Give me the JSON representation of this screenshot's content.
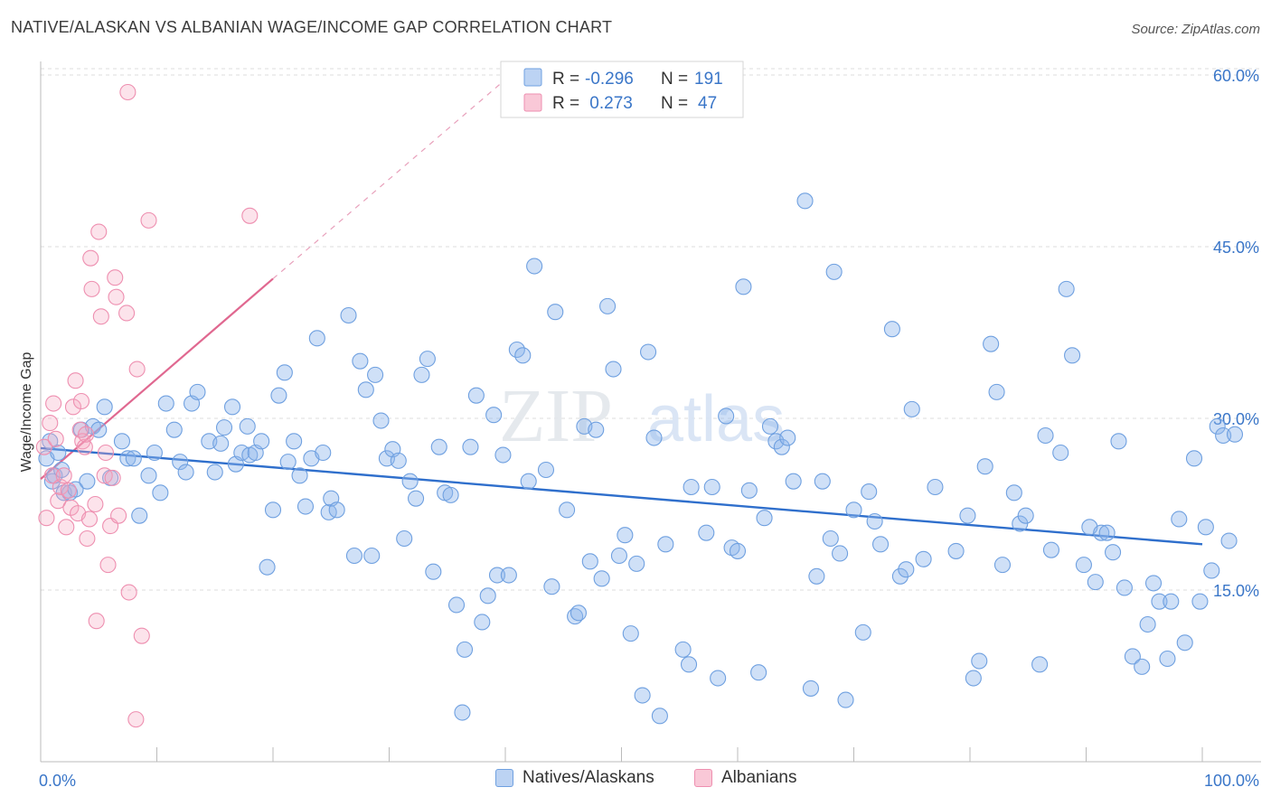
{
  "header": {
    "title": "NATIVE/ALASKAN VS ALBANIAN WAGE/INCOME GAP CORRELATION CHART",
    "source": "Source: ZipAtlas.com"
  },
  "watermark": {
    "zip": "ZIP",
    "atlas": "atlas"
  },
  "stats_legend": {
    "rows": [
      {
        "r_label": "R =",
        "r_value": "-0.296",
        "n_label": "N =",
        "n_value": "191",
        "color": "#6fa0e0"
      },
      {
        "r_label": "R =",
        "r_value": " 0.273",
        "n_label": "N =",
        "n_value": "47",
        "color": "#ee8fb0"
      }
    ]
  },
  "chart_data": {
    "type": "scatter",
    "title": "NATIVE/ALASKAN VS ALBANIAN WAGE/INCOME GAP CORRELATION CHART",
    "xlabel": "",
    "ylabel": "Wage/Income Gap",
    "xlim": [
      0,
      100
    ],
    "ylim": [
      0,
      64
    ],
    "x_ticks": [
      0,
      10,
      20,
      30,
      40,
      50,
      60,
      70,
      80,
      90,
      100
    ],
    "x_tick_labels_shown": {
      "min": "0.0%",
      "max": "100.0%"
    },
    "y_ticks": [
      15,
      30,
      45,
      60
    ],
    "y_tick_labels": [
      "15.0%",
      "30.0%",
      "45.0%",
      "60.0%"
    ],
    "grid": true,
    "legend_position": "bottom-center",
    "series": [
      {
        "name": "Natives/Alaskans",
        "color": "#6fa0e0",
        "r": -0.296,
        "n": 191,
        "trend": {
          "x": [
            0,
            100
          ],
          "y": [
            27.4,
            19.0
          ]
        },
        "points": [
          [
            0.5,
            26.5
          ],
          [
            0.8,
            28.0
          ],
          [
            1.0,
            24.5
          ],
          [
            1.2,
            25.0
          ],
          [
            1.5,
            27.0
          ],
          [
            1.8,
            25.5
          ],
          [
            2.0,
            23.5
          ],
          [
            2.5,
            23.5
          ],
          [
            3.0,
            23.8
          ],
          [
            3.5,
            29.0
          ],
          [
            4.0,
            24.5
          ],
          [
            4.5,
            29.3
          ],
          [
            5.0,
            29.0
          ],
          [
            5.5,
            31.0
          ],
          [
            6.0,
            24.8
          ],
          [
            7.0,
            28.0
          ],
          [
            7.5,
            26.5
          ],
          [
            8.0,
            26.5
          ],
          [
            8.5,
            21.5
          ],
          [
            9.3,
            25.0
          ],
          [
            9.8,
            27.0
          ],
          [
            10.3,
            23.5
          ],
          [
            10.8,
            31.3
          ],
          [
            11.5,
            29.0
          ],
          [
            12.0,
            26.2
          ],
          [
            12.5,
            25.3
          ],
          [
            13.0,
            31.3
          ],
          [
            13.5,
            32.3
          ],
          [
            14.5,
            28.0
          ],
          [
            15.0,
            25.3
          ],
          [
            15.5,
            27.8
          ],
          [
            15.8,
            29.2
          ],
          [
            16.5,
            31.0
          ],
          [
            16.8,
            26.0
          ],
          [
            17.3,
            27.0
          ],
          [
            17.8,
            29.3
          ],
          [
            18.0,
            26.8
          ],
          [
            18.5,
            27.0
          ],
          [
            19.0,
            28.0
          ],
          [
            19.5,
            17.0
          ],
          [
            20.0,
            22.0
          ],
          [
            20.5,
            32.0
          ],
          [
            21.0,
            34.0
          ],
          [
            21.3,
            26.2
          ],
          [
            21.8,
            28.0
          ],
          [
            22.3,
            25.0
          ],
          [
            22.8,
            22.3
          ],
          [
            23.3,
            26.5
          ],
          [
            23.8,
            37.0
          ],
          [
            24.3,
            27.0
          ],
          [
            24.8,
            21.8
          ],
          [
            25.0,
            23.0
          ],
          [
            25.5,
            22.0
          ],
          [
            26.5,
            39.0
          ],
          [
            27.0,
            18.0
          ],
          [
            27.5,
            35.0
          ],
          [
            28.0,
            32.5
          ],
          [
            28.5,
            18.0
          ],
          [
            28.8,
            33.8
          ],
          [
            29.3,
            29.8
          ],
          [
            29.8,
            26.5
          ],
          [
            30.3,
            27.3
          ],
          [
            30.8,
            26.3
          ],
          [
            31.3,
            19.5
          ],
          [
            31.8,
            24.5
          ],
          [
            32.3,
            23.0
          ],
          [
            32.8,
            33.8
          ],
          [
            33.3,
            35.2
          ],
          [
            33.8,
            16.6
          ],
          [
            34.3,
            27.5
          ],
          [
            34.8,
            23.5
          ],
          [
            35.3,
            23.3
          ],
          [
            35.8,
            13.7
          ],
          [
            36.3,
            4.3
          ],
          [
            36.5,
            9.8
          ],
          [
            37.0,
            27.5
          ],
          [
            37.5,
            32.0
          ],
          [
            38.0,
            12.2
          ],
          [
            38.5,
            14.5
          ],
          [
            39.0,
            30.3
          ],
          [
            39.3,
            16.3
          ],
          [
            39.8,
            26.8
          ],
          [
            40.3,
            16.3
          ],
          [
            41.0,
            36.0
          ],
          [
            41.5,
            35.5
          ],
          [
            42.0,
            24.5
          ],
          [
            42.5,
            43.3
          ],
          [
            43.5,
            25.5
          ],
          [
            44.0,
            15.3
          ],
          [
            44.3,
            39.3
          ],
          [
            45.3,
            22.0
          ],
          [
            46.0,
            12.7
          ],
          [
            46.3,
            13.0
          ],
          [
            46.8,
            29.3
          ],
          [
            47.3,
            17.5
          ],
          [
            47.8,
            29.0
          ],
          [
            48.3,
            16.0
          ],
          [
            48.8,
            39.8
          ],
          [
            49.3,
            34.3
          ],
          [
            49.8,
            18.0
          ],
          [
            50.3,
            19.8
          ],
          [
            50.8,
            11.2
          ],
          [
            51.3,
            17.3
          ],
          [
            51.8,
            5.8
          ],
          [
            52.3,
            35.8
          ],
          [
            52.8,
            28.3
          ],
          [
            53.3,
            4.0
          ],
          [
            53.8,
            19.0
          ],
          [
            55.3,
            9.8
          ],
          [
            55.8,
            8.5
          ],
          [
            56.0,
            24.0
          ],
          [
            57.3,
            20.0
          ],
          [
            57.8,
            24.0
          ],
          [
            58.3,
            7.3
          ],
          [
            59.0,
            30.2
          ],
          [
            59.5,
            18.7
          ],
          [
            60.0,
            18.4
          ],
          [
            60.5,
            41.5
          ],
          [
            61.0,
            23.7
          ],
          [
            61.8,
            7.8
          ],
          [
            62.3,
            21.3
          ],
          [
            62.8,
            29.3
          ],
          [
            63.3,
            28.0
          ],
          [
            63.8,
            27.5
          ],
          [
            64.3,
            28.3
          ],
          [
            64.8,
            24.5
          ],
          [
            65.8,
            49.0
          ],
          [
            66.3,
            6.4
          ],
          [
            66.8,
            16.2
          ],
          [
            67.3,
            24.5
          ],
          [
            68.0,
            19.5
          ],
          [
            68.3,
            42.8
          ],
          [
            68.8,
            18.2
          ],
          [
            69.3,
            5.4
          ],
          [
            70.0,
            22.0
          ],
          [
            70.8,
            11.3
          ],
          [
            71.3,
            23.6
          ],
          [
            71.8,
            21.0
          ],
          [
            72.3,
            19.0
          ],
          [
            73.3,
            37.8
          ],
          [
            74.0,
            16.2
          ],
          [
            74.5,
            16.8
          ],
          [
            75.0,
            30.8
          ],
          [
            76.0,
            17.7
          ],
          [
            77.0,
            24.0
          ],
          [
            78.8,
            18.4
          ],
          [
            79.8,
            21.5
          ],
          [
            80.3,
            7.3
          ],
          [
            80.8,
            8.8
          ],
          [
            81.3,
            25.8
          ],
          [
            81.8,
            36.5
          ],
          [
            82.3,
            32.3
          ],
          [
            82.8,
            17.2
          ],
          [
            83.8,
            23.5
          ],
          [
            84.3,
            20.8
          ],
          [
            84.8,
            21.5
          ],
          [
            86.0,
            8.5
          ],
          [
            86.5,
            28.5
          ],
          [
            87.0,
            18.5
          ],
          [
            87.8,
            27.0
          ],
          [
            88.3,
            41.3
          ],
          [
            88.8,
            35.5
          ],
          [
            89.8,
            17.2
          ],
          [
            90.3,
            20.5
          ],
          [
            90.8,
            15.7
          ],
          [
            91.3,
            20.0
          ],
          [
            91.8,
            20.0
          ],
          [
            92.3,
            18.3
          ],
          [
            92.8,
            28.0
          ],
          [
            93.3,
            15.2
          ],
          [
            94.0,
            9.2
          ],
          [
            94.8,
            8.3
          ],
          [
            95.3,
            12.0
          ],
          [
            95.8,
            15.6
          ],
          [
            96.3,
            14.0
          ],
          [
            97.0,
            9.0
          ],
          [
            97.3,
            14.0
          ],
          [
            98.0,
            21.2
          ],
          [
            98.5,
            10.4
          ],
          [
            99.3,
            26.5
          ],
          [
            99.8,
            14.0
          ],
          [
            100.3,
            20.5
          ],
          [
            100.8,
            16.7
          ],
          [
            101.3,
            29.3
          ],
          [
            101.8,
            28.5
          ],
          [
            102.3,
            19.3
          ],
          [
            102.8,
            28.6
          ]
        ]
      },
      {
        "name": "Albanians",
        "color": "#ee8fb0",
        "r": 0.273,
        "n": 47,
        "trend": {
          "x": [
            0,
            20
          ],
          "y": [
            24.7,
            42.2
          ],
          "dashed_extension": {
            "x": [
              20,
              40
            ],
            "y": [
              42.2,
              59.6
            ]
          }
        },
        "points": [
          [
            0.3,
            27.5
          ],
          [
            0.5,
            21.3
          ],
          [
            0.8,
            29.6
          ],
          [
            1.0,
            25.0
          ],
          [
            1.1,
            31.3
          ],
          [
            1.3,
            28.2
          ],
          [
            1.5,
            22.8
          ],
          [
            1.7,
            24.0
          ],
          [
            2.0,
            25.0
          ],
          [
            2.2,
            20.5
          ],
          [
            2.4,
            23.7
          ],
          [
            2.6,
            22.2
          ],
          [
            2.8,
            31.0
          ],
          [
            3.0,
            33.3
          ],
          [
            3.2,
            21.7
          ],
          [
            3.4,
            29.0
          ],
          [
            3.5,
            31.5
          ],
          [
            3.6,
            28.0
          ],
          [
            3.8,
            27.5
          ],
          [
            3.9,
            28.6
          ],
          [
            4.0,
            19.5
          ],
          [
            4.2,
            21.2
          ],
          [
            4.3,
            44.0
          ],
          [
            4.4,
            41.3
          ],
          [
            4.7,
            22.5
          ],
          [
            4.8,
            12.3
          ],
          [
            5.0,
            46.3
          ],
          [
            5.2,
            38.9
          ],
          [
            5.5,
            25.0
          ],
          [
            5.6,
            27.0
          ],
          [
            5.8,
            17.2
          ],
          [
            6.0,
            20.6
          ],
          [
            6.2,
            24.8
          ],
          [
            6.4,
            42.3
          ],
          [
            6.5,
            40.6
          ],
          [
            6.7,
            21.5
          ],
          [
            7.4,
            39.2
          ],
          [
            7.6,
            14.8
          ],
          [
            7.5,
            58.5
          ],
          [
            8.2,
            3.7
          ],
          [
            8.3,
            34.3
          ],
          [
            8.7,
            11.0
          ],
          [
            9.3,
            47.3
          ],
          [
            18.0,
            47.7
          ]
        ]
      }
    ]
  }
}
